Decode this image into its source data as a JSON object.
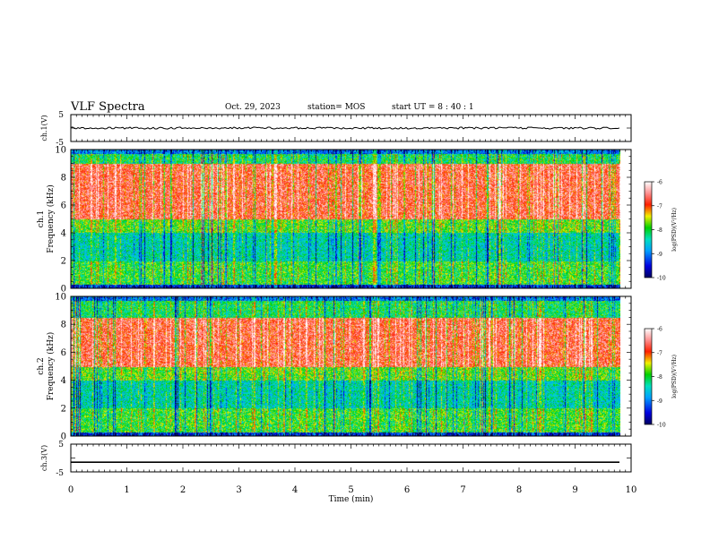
{
  "header": {
    "title": "VLF Spectra",
    "date": "Oct. 29, 2023",
    "station": "station= MOS",
    "start": "start  UT =   8 : 40 : 1"
  },
  "chart_data": [
    {
      "type": "line",
      "ylabel": "ch.1(V)",
      "ylim": [
        -5,
        5
      ],
      "yticks": [
        "5",
        "-5"
      ],
      "x": [
        0,
        9.8
      ],
      "values": [
        0,
        0
      ],
      "xlim": [
        0,
        10
      ]
    },
    {
      "type": "heatmap",
      "ylabel_lines": [
        "ch.1",
        "Frequency (kHz)"
      ],
      "ylim": [
        0,
        10
      ],
      "yticks": [
        "0",
        "2",
        "4",
        "6",
        "8",
        "10"
      ],
      "xlim": [
        0,
        10
      ],
      "data_extent_min": 9.8,
      "colorbar": {
        "label": "log(PSD)(V²/Hz)",
        "range": [
          -10,
          -6
        ],
        "ticks": [
          "-6",
          "-7",
          "-8",
          "-9",
          "-10"
        ]
      },
      "profile": {
        "low_power_band_khz": [
          2,
          4
        ],
        "high_power_band_khz": [
          5,
          9
        ]
      }
    },
    {
      "type": "heatmap",
      "ylabel_lines": [
        "ch.2",
        "Frequency (kHz)"
      ],
      "ylim": [
        0,
        10
      ],
      "yticks": [
        "0",
        "2",
        "4",
        "6",
        "8",
        "10"
      ],
      "xlim": [
        0,
        10
      ],
      "data_extent_min": 9.8,
      "colorbar": {
        "label": "log(PSD)(V²/Hz)",
        "range": [
          -10,
          -6
        ],
        "ticks": [
          "-6",
          "-7",
          "-8",
          "-9",
          "-10"
        ]
      },
      "profile": {
        "low_power_band_khz": [
          2,
          4
        ],
        "high_power_band_khz": [
          5,
          8.5
        ]
      }
    },
    {
      "type": "line",
      "ylabel": "ch.3(V)",
      "ylim": [
        -5,
        5
      ],
      "yticks": [
        "5",
        "-5"
      ],
      "x": [
        0,
        9.8
      ],
      "values": [
        -1.5,
        -1.5
      ],
      "xlim": [
        0,
        10
      ],
      "xticks": [
        "0",
        "1",
        "2",
        "3",
        "4",
        "5",
        "6",
        "7",
        "8",
        "9",
        "10"
      ],
      "xlabel": "Time  (min)"
    }
  ],
  "colors": {
    "background": "#ffffff",
    "axis": "#000000",
    "spectrogram_scale": [
      "#0000c8",
      "#00a0ff",
      "#00e0d0",
      "#00d000",
      "#e0e000",
      "#ff2000",
      "#ffffff"
    ]
  }
}
